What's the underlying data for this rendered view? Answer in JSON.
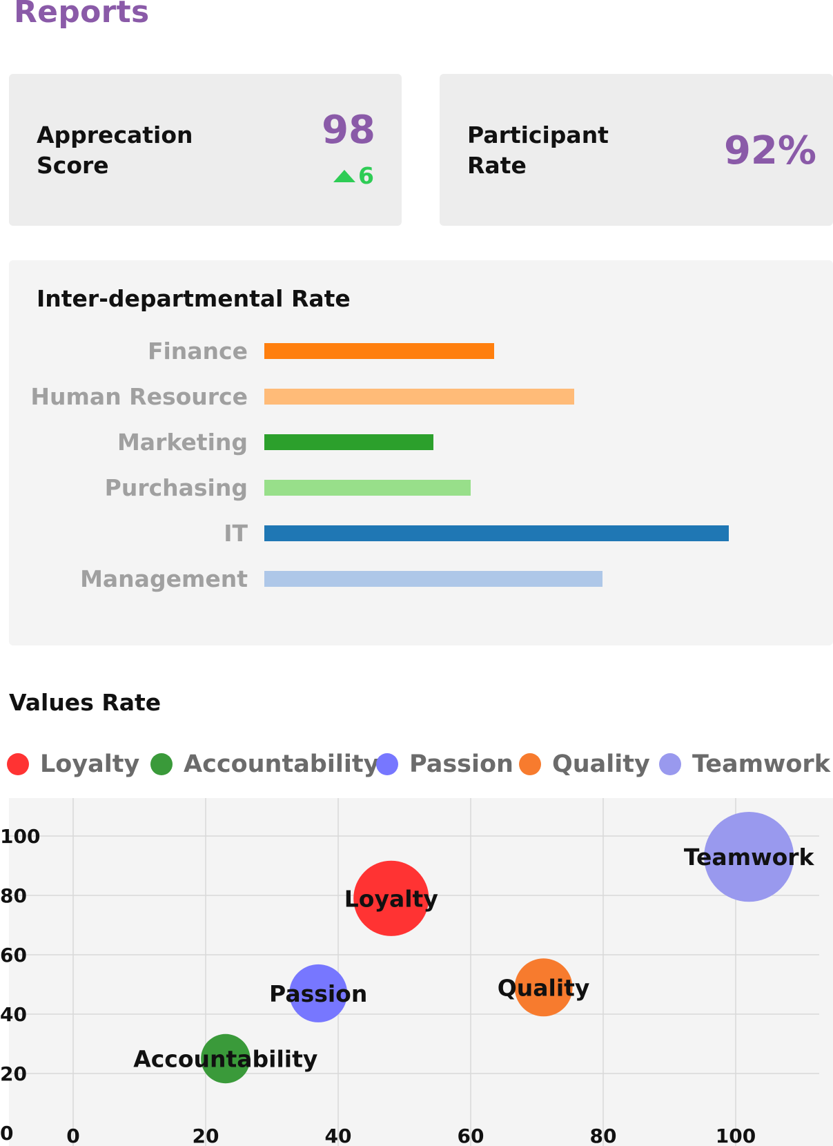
{
  "page": {
    "title": "Reports"
  },
  "appreciation": {
    "label": "Apprecation Score",
    "value": "98",
    "delta": "6"
  },
  "participant": {
    "label": "Participant Rate",
    "value": "92%"
  },
  "colors": {
    "accent": "#8a5aa8",
    "up": "#2ecc55",
    "finance": "#ff7f0e",
    "human_resource": "#ffbb78",
    "marketing": "#2ca02c",
    "purchasing": "#98df8a",
    "it": "#1f77b4",
    "management": "#aec7e8"
  },
  "chart_data": [
    {
      "type": "bar",
      "orientation": "horizontal",
      "title": "Inter-departmental Rate",
      "categories": [
        "Finance",
        "Human Resource",
        "Marketing",
        "Purchasing",
        "IT",
        "Management"
      ],
      "values": [
        49,
        66,
        36,
        44,
        99,
        72
      ],
      "colors": [
        "#ff7f0e",
        "#ffbb78",
        "#2ca02c",
        "#98df8a",
        "#1f77b4",
        "#aec7e8"
      ],
      "xlim": [
        0,
        100
      ],
      "grid": false
    },
    {
      "type": "scatter",
      "variant": "bubble",
      "title": "Values Rate",
      "legend_position": "top",
      "grid": true,
      "xlim": [
        -5,
        110
      ],
      "ylim": [
        0,
        110
      ],
      "x_ticks": [
        0,
        20,
        40,
        60,
        80,
        100
      ],
      "y_ticks": [
        0,
        20,
        40,
        60,
        80,
        100
      ],
      "series": [
        {
          "name": "Loyalty",
          "x": 48,
          "y": 79,
          "size": 26,
          "color": "#ff3333"
        },
        {
          "name": "Accountability",
          "x": 23,
          "y": 25,
          "size": 17,
          "color": "#3a9a3a"
        },
        {
          "name": "Passion",
          "x": 37,
          "y": 47,
          "size": 20,
          "color": "#7777ff"
        },
        {
          "name": "Quality",
          "x": 71,
          "y": 49,
          "size": 20,
          "color": "#f77b2e"
        },
        {
          "name": "Teamwork",
          "x": 102,
          "y": 93,
          "size": 31,
          "color": "#9999ee"
        }
      ]
    }
  ]
}
